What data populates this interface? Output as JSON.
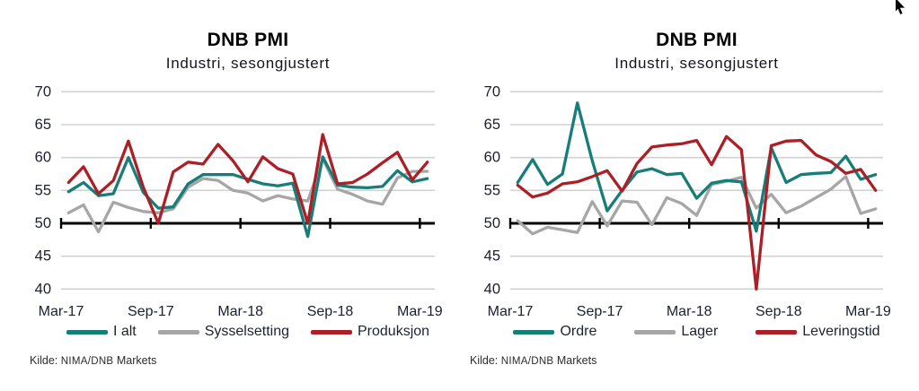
{
  "window": {
    "background": "#ffffff"
  },
  "colors": {
    "teal": "#177d78",
    "red": "#ab1f27",
    "gray": "#a6a6a6",
    "gridline": "#d2d2d2",
    "axis": "#000000",
    "tick_text": "#1b1f2e",
    "title_text": "#000000",
    "source_text": "#2b2b2b"
  },
  "charts": [
    {
      "title": "DNB PMI",
      "subtitle": "Industri, sesongjustert",
      "source_prefix": "Kilde:",
      "source_org": "NIMA/DNB",
      "source_suffix": "Markets"
    },
    {
      "title": "DNB PMI",
      "subtitle": "Industri, sesongjustert",
      "source_prefix": "Kilde:",
      "source_org": "NIMA/DNB",
      "source_suffix": "Markets"
    }
  ],
  "chart_data": [
    {
      "type": "line",
      "title": "DNB PMI",
      "subtitle": "Industri, sesongjustert",
      "source": "Kilde: NIMA/DNB Markets",
      "x": [
        "Mar-17",
        "Apr-17",
        "May-17",
        "Jun-17",
        "Jul-17",
        "Aug-17",
        "Sep-17",
        "Oct-17",
        "Nov-17",
        "Dec-17",
        "Jan-18",
        "Feb-18",
        "Mar-18",
        "Apr-18",
        "May-18",
        "Jun-18",
        "Jul-18",
        "Aug-18",
        "Sep-18",
        "Oct-18",
        "Nov-18",
        "Dec-18",
        "Jan-19",
        "Feb-19",
        "Mar-19"
      ],
      "x_tick_labels": [
        "Mar-17",
        "Sep-17",
        "Mar-18",
        "Sep-18",
        "Mar-19"
      ],
      "y_ticks": [
        70,
        65,
        60,
        55,
        50,
        45,
        40
      ],
      "ylim": [
        40,
        70
      ],
      "baseline": 50,
      "grid": "horizontal",
      "legend_position": "bottom",
      "series": [
        {
          "name": "I alt",
          "color_key": "teal",
          "z": 2,
          "values": [
            54.8,
            56.2,
            54.2,
            54.5,
            60.0,
            54.7,
            52.3,
            52.5,
            56.0,
            57.4,
            57.4,
            57.4,
            56.7,
            56.0,
            55.7,
            56.1,
            48.0,
            60.1,
            55.8,
            55.5,
            55.4,
            55.6,
            58.0,
            56.3,
            56.8
          ]
        },
        {
          "name": "Sysselsetting",
          "color_key": "gray",
          "z": 1,
          "values": [
            51.6,
            52.8,
            48.7,
            53.2,
            52.4,
            51.8,
            51.6,
            52.2,
            55.5,
            56.8,
            56.5,
            55.0,
            54.6,
            53.4,
            54.2,
            53.7,
            53.4,
            59.8,
            55.2,
            54.4,
            53.4,
            52.9,
            56.9,
            57.9,
            57.9
          ]
        },
        {
          "name": "Produksjon",
          "color_key": "red",
          "z": 3,
          "values": [
            56.2,
            58.6,
            54.5,
            56.5,
            62.5,
            55.5,
            50.0,
            57.8,
            59.3,
            59.0,
            62.0,
            59.5,
            56.3,
            60.1,
            58.3,
            57.5,
            50.0,
            63.5,
            56.0,
            56.2,
            57.5,
            59.2,
            60.8,
            56.6,
            59.3
          ]
        }
      ]
    },
    {
      "type": "line",
      "title": "DNB PMI",
      "subtitle": "Industri, sesongjustert",
      "source": "Kilde: NIMA/DNB Markets",
      "x": [
        "Mar-17",
        "Apr-17",
        "May-17",
        "Jun-17",
        "Jul-17",
        "Aug-17",
        "Sep-17",
        "Oct-17",
        "Nov-17",
        "Dec-17",
        "Jan-18",
        "Feb-18",
        "Mar-18",
        "Apr-18",
        "May-18",
        "Jun-18",
        "Jul-18",
        "Aug-18",
        "Sep-18",
        "Oct-18",
        "Nov-18",
        "Dec-18",
        "Jan-19",
        "Feb-19",
        "Mar-19"
      ],
      "x_tick_labels": [
        "Mar-17",
        "Sep-17",
        "Mar-18",
        "Sep-18",
        "Mar-19"
      ],
      "y_ticks": [
        70,
        65,
        60,
        55,
        50,
        45,
        40
      ],
      "ylim": [
        40,
        70
      ],
      "baseline": 50,
      "grid": "horizontal",
      "legend_position": "bottom",
      "series": [
        {
          "name": "Ordre",
          "color_key": "teal",
          "z": 2,
          "values": [
            56.2,
            59.7,
            55.9,
            57.5,
            68.3,
            59.5,
            51.9,
            55.0,
            57.8,
            58.3,
            57.4,
            57.6,
            53.8,
            56.1,
            56.5,
            56.3,
            48.8,
            61.5,
            56.2,
            57.4,
            57.6,
            57.7,
            60.2,
            56.7,
            57.4
          ]
        },
        {
          "name": "Lager",
          "color_key": "gray",
          "z": 1,
          "values": [
            50.4,
            48.4,
            49.4,
            49.0,
            48.6,
            53.3,
            49.6,
            53.4,
            53.2,
            49.8,
            53.9,
            53.0,
            51.2,
            55.9,
            56.4,
            57.0,
            52.3,
            54.4,
            51.6,
            52.6,
            53.9,
            55.2,
            57.1,
            51.5,
            52.2
          ]
        },
        {
          "name": "Leveringstid",
          "color_key": "red",
          "z": 3,
          "values": [
            55.8,
            54.0,
            54.6,
            56.0,
            56.3,
            57.1,
            58.0,
            54.9,
            59.1,
            61.6,
            61.9,
            62.1,
            62.6,
            58.9,
            63.2,
            61.2,
            40.0,
            61.8,
            62.5,
            62.6,
            60.4,
            59.4,
            57.6,
            58.2,
            55.0
          ]
        }
      ]
    }
  ]
}
